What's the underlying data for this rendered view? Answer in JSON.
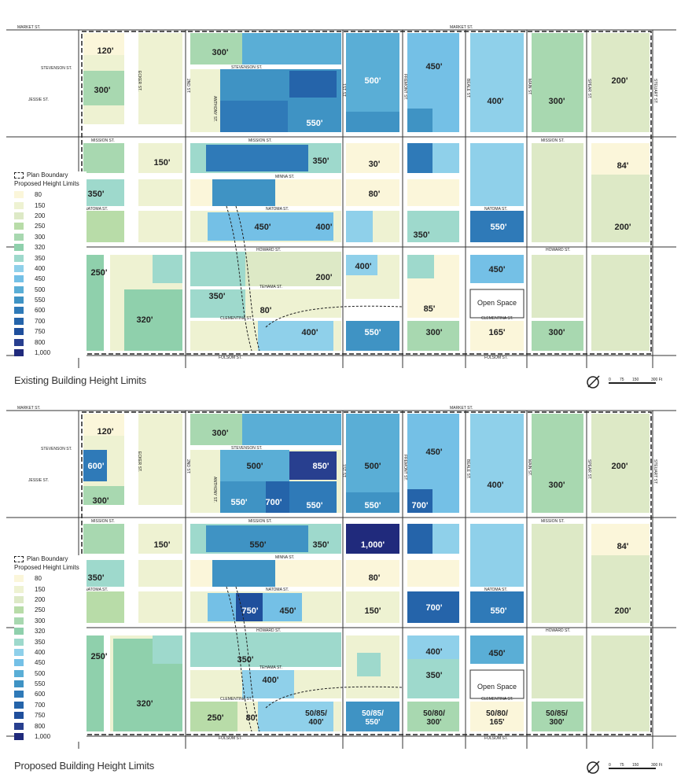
{
  "maps": [
    {
      "caption": "Existing Building Height Limits",
      "streets": {
        "market": "MARKET ST.",
        "stevenson": "STEVENSON ST.",
        "jessie": "JESSIE ST.",
        "mission": "MISSION ST.",
        "minna": "MINNA ST.",
        "natoma": "NATOMA ST.",
        "howard": "HOWARD ST.",
        "tehama": "TEHAMA ST.",
        "clementina": "CLEMENTINA ST.",
        "folsom": "FOLSOM ST.",
        "ecker": "ECKER ST.",
        "first": "1ST ST.",
        "second": "2ND ST.",
        "fremont": "FREMONT ST.",
        "beale": "BEALE ST.",
        "main": "MAIN ST.",
        "spear": "SPEAR ST.",
        "steuart": "STEUART ST.",
        "anthony": "ANTHONY ST."
      },
      "labels": [
        "120'",
        "300'",
        "300'",
        "550'",
        "500'",
        "450'",
        "400'",
        "300'",
        "200'",
        "150'",
        "350'",
        "30'",
        "84'",
        "350'",
        "80'",
        "450'",
        "400'",
        "350'",
        "550'",
        "200'",
        "250'",
        "400'",
        "450'",
        "200'",
        "350'",
        "85'",
        "Open Space",
        "320'",
        "80'",
        "400'",
        "550'",
        "300'",
        "165'",
        "300'"
      ]
    },
    {
      "caption": "Proposed Building Height Limits",
      "streets": {
        "market": "MARKET ST.",
        "stevenson": "STEVENSON ST.",
        "jessie": "JESSIE ST.",
        "mission": "MISSION ST.",
        "minna": "MINNA ST.",
        "natoma": "NATOMA ST.",
        "howard": "HOWARD ST.",
        "tehama": "TEHAMA ST.",
        "clementina": "CLEMENTINA ST.",
        "folsom": "FOLSOM ST.",
        "ecker": "ECKER ST.",
        "first": "1ST ST.",
        "second": "2ND ST.",
        "fremont": "FREMONT ST.",
        "beale": "BEALE ST.",
        "main": "MAIN ST.",
        "spear": "SPEAR ST.",
        "steuart": "STEUART ST.",
        "anthony": "ANTHONY ST."
      },
      "labels": [
        "120'",
        "300'",
        "600'",
        "500'",
        "850'",
        "500'",
        "450'",
        "400'",
        "300'",
        "200'",
        "300'",
        "550'",
        "700'",
        "550'",
        "550'",
        "700'",
        "150'",
        "550'",
        "350'",
        "1,000'",
        "84'",
        "350'",
        "80'",
        "750'",
        "450'",
        "150'",
        "700'",
        "550'",
        "200'",
        "250'",
        "350'",
        "400'",
        "450'",
        "400'",
        "350'",
        "Open Space",
        "320'",
        "250'",
        "80'",
        "50/85/\n400'",
        "50/85/\n550'",
        "50/80/\n300'",
        "50/80/\n165'",
        "50/85/\n300'"
      ]
    }
  ],
  "legend": {
    "boundary_label": "Plan Boundary",
    "title": "Proposed Height Limits",
    "items": [
      {
        "label": "80",
        "color": "#fbf6da"
      },
      {
        "label": "150",
        "color": "#eef2d2"
      },
      {
        "label": "200",
        "color": "#dde9c6"
      },
      {
        "label": "250",
        "color": "#b8dca8"
      },
      {
        "label": "300",
        "color": "#a8d8b0"
      },
      {
        "label": "320",
        "color": "#8fd0ac"
      },
      {
        "label": "350",
        "color": "#9ed9cc"
      },
      {
        "label": "400",
        "color": "#8fd0ea"
      },
      {
        "label": "450",
        "color": "#74c0e6"
      },
      {
        "label": "500",
        "color": "#5aaed6"
      },
      {
        "label": "550",
        "color": "#3f93c4"
      },
      {
        "label": "600",
        "color": "#2f7ab8"
      },
      {
        "label": "700",
        "color": "#2564aa"
      },
      {
        "label": "750",
        "color": "#1f4f9c"
      },
      {
        "label": "800",
        "color": "#283f8f"
      },
      {
        "label": "1,000",
        "color": "#202a7c"
      }
    ]
  },
  "scale": {
    "ticks": [
      "0",
      "75",
      "150",
      "300 Ft"
    ]
  }
}
